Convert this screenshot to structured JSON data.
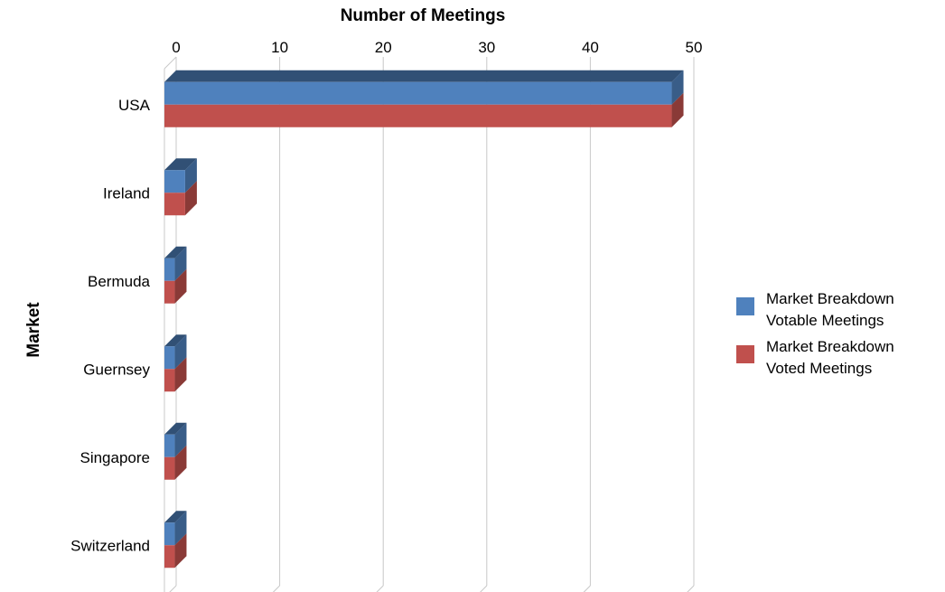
{
  "chart_data": {
    "type": "bar",
    "orientation": "horizontal",
    "style": "3d",
    "title": "",
    "xlabel": "Number of Meetings",
    "ylabel": "Market",
    "xlim": [
      0,
      50
    ],
    "xticks": [
      "0",
      "10",
      "20",
      "30",
      "40",
      "50"
    ],
    "x_axis_position": "top",
    "grid": true,
    "legend_position": "right",
    "categories": [
      "USA",
      "Ireland",
      "Bermuda",
      "Guernsey",
      "Singapore",
      "Switzerland"
    ],
    "series": [
      {
        "name": "Market Breakdown Votable Meetings",
        "legend_lines": [
          "Market Breakdown",
          "Votable Meetings"
        ],
        "values": [
          49,
          2,
          1,
          1,
          1,
          1
        ],
        "color": "#4f81bd"
      },
      {
        "name": "Market Breakdown Voted Meetings",
        "legend_lines": [
          "Market Breakdown",
          "Voted Meetings"
        ],
        "values": [
          49,
          2,
          1,
          1,
          1,
          1
        ],
        "color": "#c0504d"
      }
    ]
  }
}
